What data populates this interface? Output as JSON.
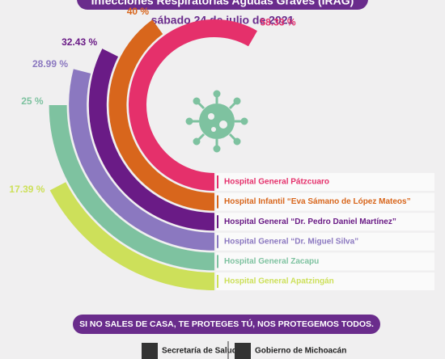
{
  "chart_data": {
    "type": "radial_bar",
    "title": "Infecciones Respiratorias Agudas Graves (IRAG)",
    "subtitle": "sábado 24 de julio de 2021",
    "categories": [
      "Hospital General Pátzcuaro",
      "Hospital Infantil “Eva Sámano de López Mateos”",
      "Hospital General “Dr. Pedro Daniel Martínez”",
      "Hospital General “Dr. Miguel Silva”",
      "Hospital General Zacapu",
      "Hospital General Apatzingán"
    ],
    "values": [
      58.33,
      40,
      32.43,
      28.99,
      25,
      17.39
    ],
    "value_labels": [
      "58.33 %",
      "40 %",
      "32.43 %",
      "28.99 %",
      "25 %",
      "17.39 %"
    ],
    "colors": [
      "#e5306b",
      "#d8661c",
      "#6a1b86",
      "#8b78c0",
      "#7ec2a0",
      "#cde05a"
    ]
  },
  "footer": {
    "slogan": "SI NO SALES DE CASA, TE PROTEGES TÚ, NOS PROTEGEMOS TODOS.",
    "logos": [
      "Secretaría de Salud",
      "Gobierno de Michoacán"
    ]
  }
}
